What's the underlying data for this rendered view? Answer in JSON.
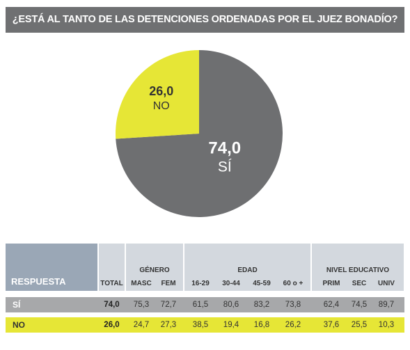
{
  "title": "¿ESTÁ AL TANTO DE LAS DETENCIONES ORDENADAS POR EL JUEZ BONADÍO?",
  "chart_data": {
    "type": "pie",
    "slices": [
      {
        "label": "SÍ",
        "value": 74.0,
        "display": "74,0",
        "color": "#6e6f71"
      },
      {
        "label": "NO",
        "value": 26.0,
        "display": "26,0",
        "color": "#e6e636"
      }
    ]
  },
  "table": {
    "response_header": "RESPUESTA",
    "groups": {
      "genero": "GÉNERO",
      "edad": "EDAD",
      "nivel": "NIVEL EDUCATIVO"
    },
    "columns": [
      "TOTAL",
      "MASC",
      "FEM",
      "16-29",
      "30-44",
      "45-59",
      "60 o +",
      "PRIM",
      "SEC",
      "UNIV"
    ],
    "rows": [
      {
        "label": "SÍ",
        "values": [
          "74,0",
          "75,3",
          "72,7",
          "61,5",
          "80,6",
          "83,2",
          "73,8",
          "62,4",
          "74,5",
          "89,7"
        ]
      },
      {
        "label": "NO",
        "values": [
          "26,0",
          "24,7",
          "27,3",
          "38,5",
          "19,4",
          "16,8",
          "26,2",
          "37,6",
          "25,5",
          "10,3"
        ]
      }
    ]
  }
}
